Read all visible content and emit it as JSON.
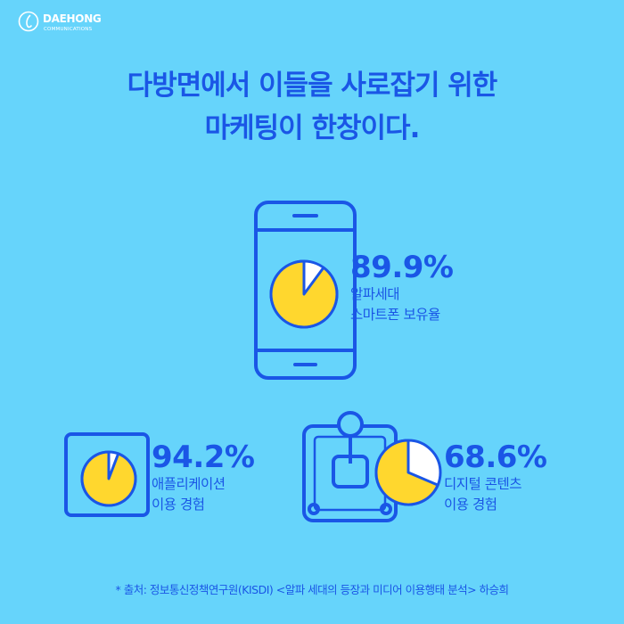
{
  "brand": {
    "name": "DAEHONG",
    "sub": "COMMUNICATIONS"
  },
  "headline": {
    "line1": "다방면에서 이들을 사로잡기 위한",
    "line2": "마케팅이 한창이다."
  },
  "stats": [
    {
      "icon": "smartphone-icon",
      "value": 89.9,
      "percent_text": "89.9%",
      "desc_line1": "알파세대",
      "desc_line2": "스마트폰 보유율"
    },
    {
      "icon": "tablet-icon",
      "value": 94.2,
      "percent_text": "94.2%",
      "desc_line1": "애플리케이션",
      "desc_line2": "이용 경험"
    },
    {
      "icon": "joystick-icon",
      "value": 68.6,
      "percent_text": "68.6%",
      "desc_line1": "디지털 콘텐츠",
      "desc_line2": "이용 경험"
    }
  ],
  "footnote": "* 출처: 정보통신정책연구원(KISDI) <알파 세대의 등장과 미디어 이용행태 분석> 하승희",
  "colors": {
    "background": "#66d4fb",
    "primary": "#1a56e6",
    "pie_fill": "#ffd72e",
    "pie_rest": "#ffffff"
  }
}
